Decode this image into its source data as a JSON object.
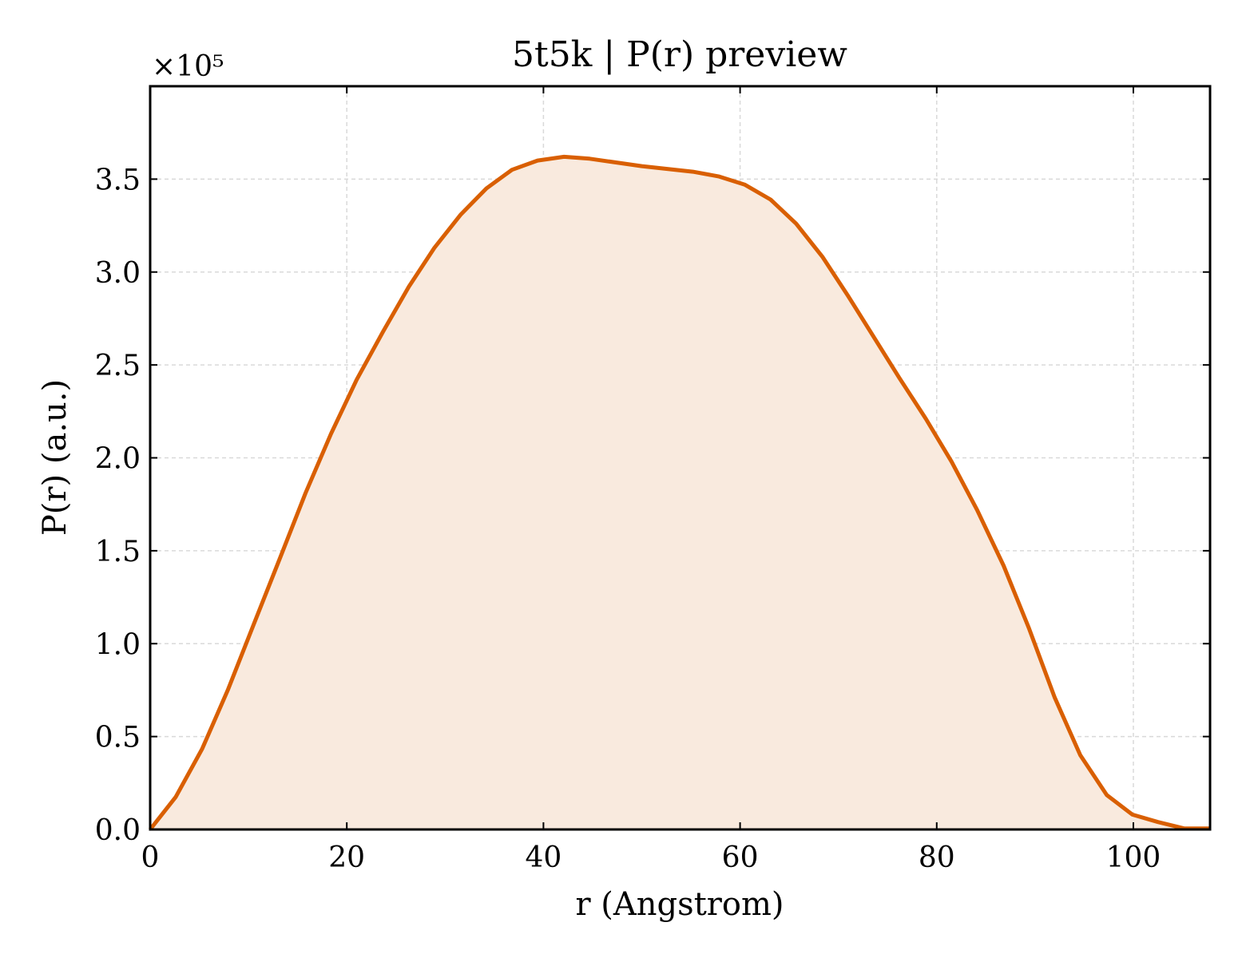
{
  "chart_data": {
    "type": "area",
    "title": "5t5k | P(r) preview",
    "xlabel": "r (Angstrom)",
    "ylabel": "P(r) (a.u.)",
    "y_multiplier_label": "×10⁵",
    "y_scale": 100000,
    "xlim": [
      0,
      107.8
    ],
    "ylim": [
      0,
      400000
    ],
    "xticks": [
      0,
      20,
      40,
      60,
      80,
      100
    ],
    "xtick_labels": [
      "0",
      "20",
      "40",
      "60",
      "80",
      "100"
    ],
    "yticks": [
      0,
      50000,
      100000,
      150000,
      200000,
      250000,
      300000,
      350000
    ],
    "ytick_labels": [
      "0.0",
      "0.5",
      "1.0",
      "1.5",
      "2.0",
      "2.5",
      "3.0",
      "3.5"
    ],
    "grid": true,
    "line_color": "#d95f02",
    "fill_color": "#f9eade",
    "series": [
      {
        "x": [
          0,
          2.6,
          5.3,
          7.9,
          10.5,
          13.2,
          15.8,
          18.4,
          21.0,
          23.7,
          26.3,
          28.9,
          31.6,
          34.2,
          36.8,
          39.4,
          42.1,
          44.7,
          47.3,
          50.0,
          52.6,
          55.2,
          57.8,
          60.5,
          63.1,
          65.7,
          68.4,
          71.0,
          73.6,
          76.2,
          78.9,
          81.5,
          84.1,
          86.8,
          89.4,
          92.0,
          94.6,
          97.3,
          99.9,
          102.5,
          105.2,
          107.8
        ],
        "y": [
          0,
          17500,
          43500,
          75000,
          110000,
          146000,
          181000,
          213000,
          242000,
          268000,
          292000,
          313000,
          331000,
          345000,
          355000,
          360000,
          362000,
          361000,
          359000,
          357000,
          355500,
          354000,
          351500,
          347000,
          339000,
          326000,
          308000,
          287000,
          265000,
          243000,
          221000,
          198000,
          172000,
          142000,
          108000,
          71000,
          40000,
          18500,
          8000,
          4000,
          500,
          500
        ]
      }
    ]
  }
}
